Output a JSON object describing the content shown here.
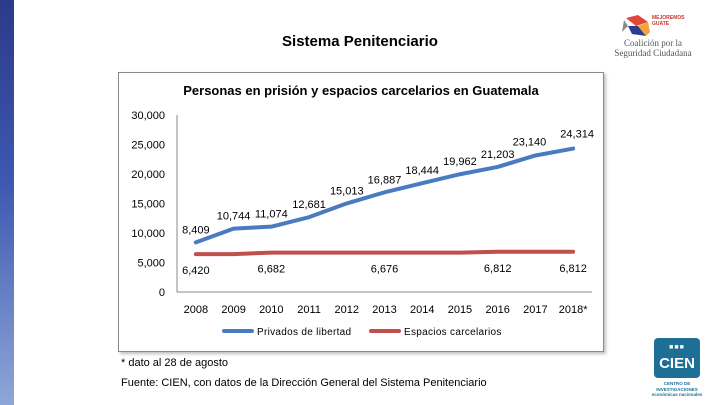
{
  "slide": {
    "title": "Sistema Penitenciario",
    "footnote": "* dato al 28 de agosto",
    "source": "Fuente: CIEN, con datos de la Dirección General del Sistema Penitenciario"
  },
  "logos": {
    "coalicion_small_1": "MEJOREMOS",
    "coalicion_small_2": "GUATE",
    "coalicion_line1": "Coalición por la",
    "coalicion_line2": "Seguridad Ciudadana",
    "cien_name": "CIEN",
    "cien_dots": "■■■",
    "cien_sub_1": "CENTRO DE INVESTIGACIONES",
    "cien_sub_2": "económicas nacionales"
  },
  "colors": {
    "series_privados": "#4a7bbf",
    "series_espacios": "#c0504d",
    "accent_blue": "#1e6f96"
  },
  "chart_data": {
    "type": "line",
    "title": "Personas en prisión y espacios carcelarios en Guatemala",
    "xlabel": "",
    "ylabel": "",
    "categories": [
      "2008",
      "2009",
      "2010",
      "2011",
      "2012",
      "2013",
      "2014",
      "2015",
      "2016",
      "2017",
      "2018*"
    ],
    "ylim": [
      0,
      30000
    ],
    "yticks": [
      0,
      5000,
      10000,
      15000,
      20000,
      25000,
      30000
    ],
    "ytick_labels": [
      "0",
      "5,000",
      "10,000",
      "15,000",
      "20,000",
      "25,000",
      "30,000"
    ],
    "grid": false,
    "legend_position": "bottom",
    "series": [
      {
        "name": "Privados de libertad",
        "values": [
          8409,
          10744,
          11074,
          12681,
          15013,
          16887,
          18444,
          19962,
          21203,
          23140,
          24314
        ],
        "labels": [
          "8,409",
          "10,744",
          "11,074",
          "12,681",
          "15,013",
          "16,887",
          "18,444",
          "19,962",
          "21,203",
          "23,140",
          "24,314"
        ]
      },
      {
        "name": "Espacios carcelarios",
        "values": [
          6420,
          6420,
          6682,
          6682,
          6682,
          6676,
          6676,
          6676,
          6812,
          6812,
          6812
        ],
        "labels": [
          "6,420",
          null,
          "6,682",
          null,
          null,
          "6,676",
          null,
          null,
          "6,812",
          null,
          "6,812"
        ]
      }
    ]
  }
}
